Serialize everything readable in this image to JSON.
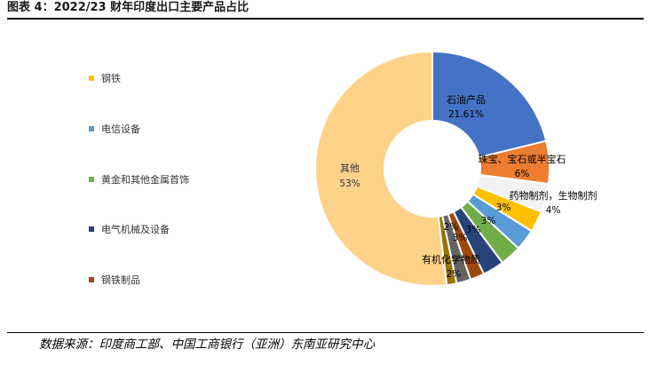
{
  "header": {
    "title": "图表 4：2022/23 财年印度出口主要产品占比"
  },
  "footer": {
    "source": "数据来源：印度商工部、中国工商银行（亚洲）东南亚研究中心"
  },
  "legend": {
    "items": [
      {
        "label": "钢铁",
        "color": "#FFC000"
      },
      {
        "label": "电信设备",
        "color": "#5B9BD5"
      },
      {
        "label": "黄金和其他金属首饰",
        "color": "#70AD47"
      },
      {
        "label": "电气机械及设备",
        "color": "#264478"
      },
      {
        "label": "钢铁制品",
        "color": "#9E480E"
      }
    ]
  },
  "chart_data": {
    "type": "pie",
    "donut": true,
    "categories": [
      "石油产品",
      "珠宝、宝石或半宝石",
      "药物制剂，生物制剂",
      "钢铁",
      "电信设备",
      "黄金和其他金属首饰",
      "电气机械及设备",
      "钢铁制品",
      "有机化学物质",
      "",
      "其他"
    ],
    "values": [
      21.61,
      6,
      4,
      3,
      3,
      3,
      3,
      2,
      2,
      1.39,
      53
    ],
    "value_labels": [
      "21.61%",
      "6%",
      "4%",
      "3%",
      "3%",
      "3%",
      "3%",
      "2%",
      "2%",
      "",
      "53%"
    ],
    "colors": [
      "#4472C4",
      "#ED7D31",
      "#F2F2F2",
      "#FFC000",
      "#5B9BD5",
      "#70AD47",
      "#264478",
      "#9E480E",
      "#636363",
      "#997300",
      "#FFD28A"
    ],
    "legend_placement": "left"
  }
}
